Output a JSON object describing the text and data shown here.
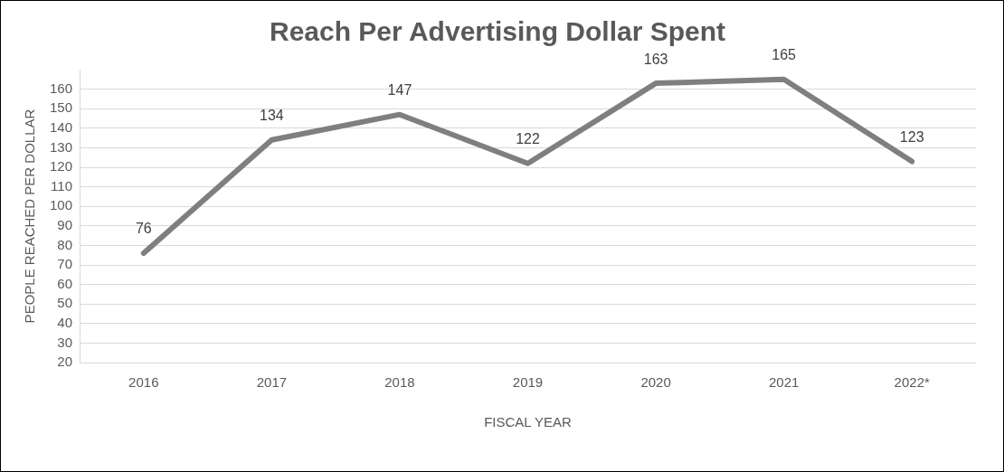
{
  "chart_data": {
    "type": "line",
    "title": "Reach Per Advertising Dollar Spent",
    "xlabel": "FISCAL YEAR",
    "ylabel": "PEOPLE REACHED PER DOLLAR",
    "categories": [
      "2016",
      "2017",
      "2018",
      "2019",
      "2020",
      "2021",
      "2022*"
    ],
    "series": [
      {
        "color": "#7f7f7f",
        "values": [
          76,
          134,
          147,
          122,
          163,
          165,
          123
        ]
      }
    ],
    "ylim": [
      20,
      170
    ],
    "yticks": [
      20,
      30,
      40,
      50,
      60,
      70,
      80,
      90,
      100,
      110,
      120,
      130,
      140,
      150,
      160
    ],
    "grid": "y",
    "legend": false,
    "marker": "none",
    "line_style": "solid",
    "data_labels": true
  }
}
